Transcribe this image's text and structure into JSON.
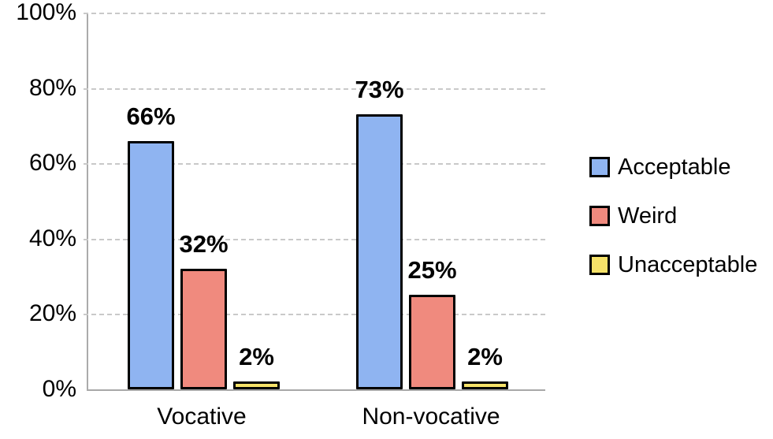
{
  "chart_data": {
    "type": "bar",
    "title": "",
    "xlabel": "",
    "ylabel": "",
    "categories": [
      "Vocative",
      "Non-vocative"
    ],
    "series": [
      {
        "name": "Acceptable",
        "color": "#8fb4f1",
        "values": [
          66,
          73
        ],
        "labels": [
          "66%",
          "73%"
        ]
      },
      {
        "name": "Weird",
        "color": "#f08a7e",
        "values": [
          32,
          25
        ],
        "labels": [
          "32%",
          "25%"
        ]
      },
      {
        "name": "Unacceptable",
        "color": "#f6e269",
        "values": [
          2,
          2
        ],
        "labels": [
          "2%",
          "2%"
        ]
      }
    ],
    "y_axis": {
      "min": 0,
      "max": 100,
      "tick_step": 20,
      "tick_labels": [
        "0%",
        "20%",
        "40%",
        "60%",
        "80%",
        "100%"
      ]
    },
    "grid": "horizontal-dashed",
    "legend_position": "right",
    "value_label_style": "bold-above-bar",
    "colors": {
      "bar_border": "#000000",
      "gridline": "#c9c9c9",
      "axis_line": "#a8a8a8",
      "text": "#000000",
      "background": "#ffffff"
    }
  }
}
